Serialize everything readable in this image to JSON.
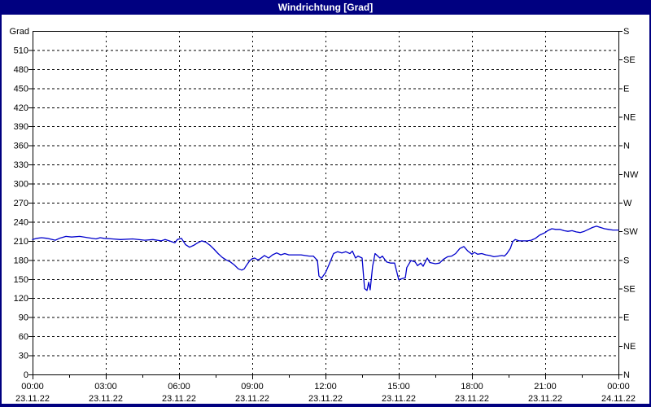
{
  "window": {
    "title": "Windrichtung [Grad]",
    "titlebar_bg": "#000080",
    "titlebar_fg": "#ffffff",
    "border_color": "#000080",
    "content_bg": "#ffffff"
  },
  "chart_data": {
    "type": "line",
    "title": "Windrichtung [Grad]",
    "grid": "dashed",
    "axis_color": "#000000",
    "plot_bg": "#ffffff",
    "y_axis_left": {
      "label": "Grad",
      "min": 0,
      "max": 540,
      "tick_step": 30,
      "tick_labels": [
        "0",
        "30",
        "60",
        "90",
        "120",
        "150",
        "180",
        "210",
        "240",
        "270",
        "300",
        "330",
        "360",
        "390",
        "420",
        "450",
        "480",
        "510"
      ]
    },
    "y_axis_right": {
      "tick_step_deg": 45,
      "labels_bottom_to_top": [
        "N",
        "NE",
        "E",
        "SE",
        "S",
        "SW",
        "W",
        "NW",
        "N",
        "NE",
        "E",
        "SE",
        "S"
      ]
    },
    "x_axis": {
      "min_hour": 0,
      "max_hour": 24,
      "major_tick_hours": 3,
      "minor_tick_hours": 1.5,
      "labels": [
        {
          "time": "00:00",
          "date": "23.11.22"
        },
        {
          "time": "03:00",
          "date": "23.11.22"
        },
        {
          "time": "06:00",
          "date": "23.11.22"
        },
        {
          "time": "09:00",
          "date": "23.11.22"
        },
        {
          "time": "12:00",
          "date": "23.11.22"
        },
        {
          "time": "15:00",
          "date": "23.11.22"
        },
        {
          "time": "18:00",
          "date": "23.11.22"
        },
        {
          "time": "21:00",
          "date": "23.11.22"
        },
        {
          "time": "00:00",
          "date": "24.11.22"
        }
      ]
    },
    "series": [
      {
        "name": "Windrichtung",
        "color": "#0000cc",
        "points": [
          [
            0.0,
            212
          ],
          [
            0.17,
            214
          ],
          [
            0.37,
            215
          ],
          [
            0.6,
            214
          ],
          [
            0.93,
            211
          ],
          [
            1.1,
            214
          ],
          [
            1.37,
            217
          ],
          [
            1.6,
            216
          ],
          [
            1.93,
            217
          ],
          [
            2.27,
            215
          ],
          [
            2.6,
            213
          ],
          [
            2.77,
            215
          ],
          [
            2.93,
            214
          ],
          [
            3.27,
            213
          ],
          [
            3.6,
            212
          ],
          [
            4.1,
            213
          ],
          [
            4.6,
            211
          ],
          [
            4.93,
            212
          ],
          [
            5.27,
            210
          ],
          [
            5.43,
            212
          ],
          [
            5.6,
            210
          ],
          [
            5.83,
            207
          ],
          [
            5.93,
            212
          ],
          [
            6.1,
            214
          ],
          [
            6.27,
            204
          ],
          [
            6.43,
            200
          ],
          [
            6.6,
            203
          ],
          [
            6.77,
            207
          ],
          [
            6.93,
            210
          ],
          [
            7.1,
            208
          ],
          [
            7.27,
            203
          ],
          [
            7.43,
            197
          ],
          [
            7.6,
            190
          ],
          [
            7.77,
            184
          ],
          [
            7.93,
            180
          ],
          [
            8.1,
            177
          ],
          [
            8.27,
            172
          ],
          [
            8.43,
            166
          ],
          [
            8.57,
            164
          ],
          [
            8.67,
            166
          ],
          [
            8.77,
            172
          ],
          [
            8.9,
            179
          ],
          [
            9.0,
            182
          ],
          [
            9.1,
            183
          ],
          [
            9.23,
            180
          ],
          [
            9.33,
            182
          ],
          [
            9.5,
            187
          ],
          [
            9.67,
            183
          ],
          [
            9.83,
            188
          ],
          [
            10.0,
            191
          ],
          [
            10.17,
            188
          ],
          [
            10.33,
            190
          ],
          [
            10.5,
            188
          ],
          [
            10.67,
            188
          ],
          [
            11.0,
            188
          ],
          [
            11.33,
            186
          ],
          [
            11.5,
            186
          ],
          [
            11.67,
            179
          ],
          [
            11.73,
            155
          ],
          [
            11.83,
            151
          ],
          [
            12.0,
            160
          ],
          [
            12.17,
            175
          ],
          [
            12.33,
            190
          ],
          [
            12.5,
            193
          ],
          [
            12.67,
            191
          ],
          [
            12.83,
            193
          ],
          [
            13.0,
            190
          ],
          [
            13.1,
            194
          ],
          [
            13.23,
            183
          ],
          [
            13.33,
            186
          ],
          [
            13.5,
            183
          ],
          [
            13.6,
            135
          ],
          [
            13.7,
            132
          ],
          [
            13.77,
            145
          ],
          [
            13.83,
            133
          ],
          [
            13.93,
            170
          ],
          [
            14.03,
            190
          ],
          [
            14.23,
            183
          ],
          [
            14.33,
            186
          ],
          [
            14.5,
            177
          ],
          [
            14.67,
            175
          ],
          [
            14.83,
            175
          ],
          [
            15.0,
            149
          ],
          [
            15.17,
            151
          ],
          [
            15.27,
            152
          ],
          [
            15.33,
            168
          ],
          [
            15.5,
            179
          ],
          [
            15.67,
            177
          ],
          [
            15.77,
            171
          ],
          [
            15.9,
            175
          ],
          [
            16.0,
            170
          ],
          [
            16.17,
            183
          ],
          [
            16.27,
            176
          ],
          [
            16.5,
            174
          ],
          [
            16.67,
            175
          ],
          [
            16.83,
            181
          ],
          [
            17.0,
            185
          ],
          [
            17.17,
            186
          ],
          [
            17.33,
            190
          ],
          [
            17.5,
            198
          ],
          [
            17.67,
            201
          ],
          [
            17.83,
            194
          ],
          [
            18.0,
            189
          ],
          [
            18.1,
            192
          ],
          [
            18.23,
            189
          ],
          [
            18.4,
            190
          ],
          [
            18.57,
            188
          ],
          [
            18.73,
            187
          ],
          [
            18.9,
            185
          ],
          [
            19.07,
            186
          ],
          [
            19.23,
            187
          ],
          [
            19.33,
            186
          ],
          [
            19.43,
            190
          ],
          [
            19.57,
            198
          ],
          [
            19.67,
            209
          ],
          [
            19.77,
            212
          ],
          [
            19.93,
            210
          ],
          [
            20.1,
            210
          ],
          [
            20.27,
            210
          ],
          [
            20.43,
            211
          ],
          [
            20.6,
            214
          ],
          [
            20.77,
            219
          ],
          [
            21.0,
            223
          ],
          [
            21.1,
            226
          ],
          [
            21.27,
            229
          ],
          [
            21.43,
            228
          ],
          [
            21.6,
            228
          ],
          [
            21.77,
            226
          ],
          [
            21.93,
            225
          ],
          [
            22.1,
            226
          ],
          [
            22.27,
            224
          ],
          [
            22.43,
            223
          ],
          [
            22.6,
            225
          ],
          [
            22.77,
            228
          ],
          [
            22.93,
            231
          ],
          [
            23.1,
            233
          ],
          [
            23.27,
            231
          ],
          [
            23.43,
            229
          ],
          [
            23.6,
            228
          ],
          [
            23.77,
            227
          ],
          [
            24.0,
            227
          ]
        ]
      }
    ]
  }
}
